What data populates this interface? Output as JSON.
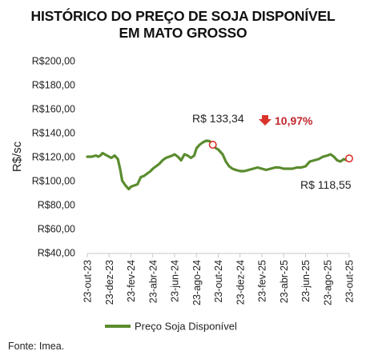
{
  "chart_data": {
    "type": "line",
    "title_lines": [
      "HISTÓRICO DO PREÇO DE SOJA DISPONÍVEL",
      "EM MATO GROSSO"
    ],
    "ylabel": "R$/sc",
    "ylim": [
      40,
      200
    ],
    "yticks": [
      40,
      60,
      80,
      100,
      120,
      140,
      160,
      180,
      200
    ],
    "ytick_labels": [
      "R$40,00",
      "R$60,00",
      "R$80,00",
      "R$100,00",
      "R$120,00",
      "R$140,00",
      "R$160,00",
      "R$180,00",
      "R$200,00"
    ],
    "x_tick_labels": [
      "23-out-23",
      "23-dez-23",
      "23-fev-24",
      "23-abr-24",
      "23-jun-24",
      "23-ago-24",
      "23-out-24",
      "23-dez-24",
      "23-fev-25",
      "23-abr-25",
      "23-jun-25",
      "23-ago-25",
      "23-out-25"
    ],
    "grid": false,
    "legend_position": "bottom",
    "series": [
      {
        "name": "Preço Soja Disponível",
        "color": "#5b8c2f",
        "x_months": [
          0,
          0.4,
          0.8,
          1.0,
          1.2,
          1.4,
          1.6,
          1.8,
          2.0,
          2.2,
          2.5,
          2.8,
          3.0,
          3.2,
          3.5,
          3.8,
          4.0,
          4.3,
          4.6,
          4.9,
          5.2,
          5.5,
          5.8,
          6.0,
          6.3,
          6.6,
          6.9,
          7.2,
          7.5,
          7.8,
          8.0,
          8.3,
          8.6,
          8.9,
          9.2,
          9.5,
          9.8,
          10.0,
          10.3,
          10.6,
          10.9,
          11.2,
          11.5,
          11.8,
          12.0,
          12.4,
          12.7,
          13.0,
          13.3,
          13.6,
          14.0,
          14.4,
          14.8,
          15.2,
          15.6,
          16.0,
          16.4,
          16.8,
          17.2,
          17.6,
          18.0,
          18.4,
          18.8,
          19.2,
          19.6,
          20.0,
          20.4,
          20.8,
          21.2,
          21.6,
          22.0,
          22.3,
          22.6,
          22.9,
          23.2,
          23.5,
          23.8,
          24.0
        ],
        "values": [
          120,
          120,
          121,
          120,
          121,
          123,
          122,
          121,
          120,
          119,
          121,
          118,
          110,
          100,
          96,
          93,
          95,
          96,
          97,
          103,
          104,
          106,
          108,
          110,
          112,
          114,
          117,
          119,
          120,
          121,
          122,
          120,
          117,
          122,
          121,
          119,
          121,
          127,
          130,
          132,
          133.34,
          133,
          130,
          127,
          126,
          122,
          116,
          112,
          110,
          109,
          108,
          108,
          109,
          110,
          111,
          110,
          109,
          110,
          111,
          111,
          110,
          110,
          110,
          111,
          111,
          112,
          116,
          117,
          118,
          120,
          121,
          122,
          120,
          117,
          116,
          118,
          117,
          118.55
        ]
      }
    ],
    "annotations": {
      "peak_label": "R$ 133,34",
      "change_label": "10,97%",
      "last_label": "R$ 118,55"
    }
  },
  "source_text": "Fonte: Imea."
}
